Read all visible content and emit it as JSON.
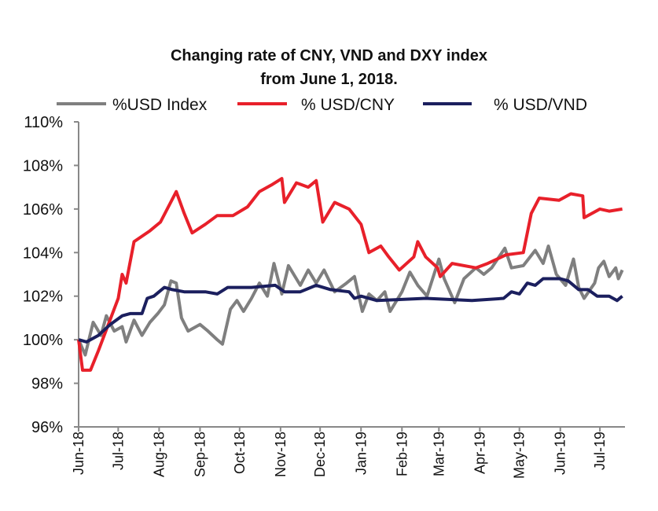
{
  "chart_data": {
    "type": "line",
    "title": "Changing rate of CNY, VND and DXY index",
    "subtitle": "from June 1, 2018.",
    "xlabel": "",
    "ylabel": "",
    "ylim": [
      96,
      110
    ],
    "yticks": [
      "96%",
      "98%",
      "100%",
      "102%",
      "104%",
      "106%",
      "108%",
      "110%"
    ],
    "xticks": [
      "Jun-18",
      "Jul-18",
      "Aug-18",
      "Sep-18",
      "Oct-18",
      "Nov-18",
      "Dec-18",
      "Jan-19",
      "Feb-19",
      "Mar-19",
      "Apr-19",
      "May-19",
      "Jun-19",
      "Jul-19"
    ],
    "xlim": [
      "2018-06-01",
      "2019-07-20"
    ],
    "grid": false,
    "legend_position": "top",
    "series": [
      {
        "name": "%USD Index",
        "color": "#7f7f7f",
        "points": [
          [
            "2018-06-01",
            100
          ],
          [
            "2018-06-06",
            99.3
          ],
          [
            "2018-06-12",
            100.8
          ],
          [
            "2018-06-18",
            100.2
          ],
          [
            "2018-06-22",
            101.1
          ],
          [
            "2018-06-28",
            100.4
          ],
          [
            "2018-07-04",
            100.6
          ],
          [
            "2018-07-07",
            99.9
          ],
          [
            "2018-07-13",
            100.9
          ],
          [
            "2018-07-19",
            100.2
          ],
          [
            "2018-07-25",
            100.8
          ],
          [
            "2018-07-31",
            101.2
          ],
          [
            "2018-08-05",
            101.6
          ],
          [
            "2018-08-10",
            102.7
          ],
          [
            "2018-08-14",
            102.6
          ],
          [
            "2018-08-18",
            101.0
          ],
          [
            "2018-08-23",
            100.4
          ],
          [
            "2018-09-01",
            100.7
          ],
          [
            "2018-09-07",
            100.4
          ],
          [
            "2018-09-14",
            100.0
          ],
          [
            "2018-09-18",
            99.8
          ],
          [
            "2018-09-24",
            101.4
          ],
          [
            "2018-09-29",
            101.8
          ],
          [
            "2018-10-04",
            101.3
          ],
          [
            "2018-10-10",
            101.9
          ],
          [
            "2018-10-16",
            102.6
          ],
          [
            "2018-10-22",
            102.0
          ],
          [
            "2018-10-27",
            103.5
          ],
          [
            "2018-11-02",
            102.1
          ],
          [
            "2018-11-07",
            103.4
          ],
          [
            "2018-11-16",
            102.5
          ],
          [
            "2018-11-22",
            103.2
          ],
          [
            "2018-11-28",
            102.6
          ],
          [
            "2018-12-04",
            103.2
          ],
          [
            "2018-12-12",
            102.2
          ],
          [
            "2018-12-21",
            102.6
          ],
          [
            "2018-12-27",
            102.9
          ],
          [
            "2019-01-02",
            101.3
          ],
          [
            "2019-01-07",
            102.1
          ],
          [
            "2019-01-13",
            101.8
          ],
          [
            "2019-01-19",
            102.2
          ],
          [
            "2019-01-23",
            101.3
          ],
          [
            "2019-02-01",
            102.2
          ],
          [
            "2019-02-07",
            103.1
          ],
          [
            "2019-02-13",
            102.5
          ],
          [
            "2019-02-20",
            102.0
          ],
          [
            "2019-03-01",
            103.7
          ],
          [
            "2019-03-05",
            102.8
          ],
          [
            "2019-03-13",
            101.7
          ],
          [
            "2019-03-20",
            102.8
          ],
          [
            "2019-03-29",
            103.3
          ],
          [
            "2019-04-04",
            103.0
          ],
          [
            "2019-04-10",
            103.3
          ],
          [
            "2019-04-20",
            104.2
          ],
          [
            "2019-04-25",
            103.3
          ],
          [
            "2019-05-04",
            103.4
          ],
          [
            "2019-05-13",
            104.1
          ],
          [
            "2019-05-19",
            103.5
          ],
          [
            "2019-05-23",
            104.3
          ],
          [
            "2019-05-29",
            103.0
          ],
          [
            "2019-06-05",
            102.5
          ],
          [
            "2019-06-11",
            103.7
          ],
          [
            "2019-06-15",
            102.4
          ],
          [
            "2019-06-19",
            101.9
          ],
          [
            "2019-06-27",
            102.6
          ],
          [
            "2019-06-30",
            103.3
          ],
          [
            "2019-07-04",
            103.6
          ],
          [
            "2019-07-08",
            102.9
          ],
          [
            "2019-07-13",
            103.3
          ],
          [
            "2019-07-15",
            102.8
          ],
          [
            "2019-07-18",
            103.2
          ]
        ]
      },
      {
        "name": "% USD/CNY",
        "color": "#e8202a",
        "points": [
          [
            "2018-06-01",
            100
          ],
          [
            "2018-06-04",
            98.6
          ],
          [
            "2018-06-10",
            98.6
          ],
          [
            "2018-06-16",
            99.5
          ],
          [
            "2018-07-01",
            101.9
          ],
          [
            "2018-07-04",
            103.0
          ],
          [
            "2018-07-07",
            102.6
          ],
          [
            "2018-07-13",
            104.5
          ],
          [
            "2018-07-25",
            105.0
          ],
          [
            "2018-08-02",
            105.4
          ],
          [
            "2018-08-14",
            106.8
          ],
          [
            "2018-08-20",
            105.8
          ],
          [
            "2018-08-26",
            104.9
          ],
          [
            "2018-09-05",
            105.3
          ],
          [
            "2018-09-14",
            105.7
          ],
          [
            "2018-09-26",
            105.7
          ],
          [
            "2018-10-07",
            106.1
          ],
          [
            "2018-10-16",
            106.8
          ],
          [
            "2018-10-25",
            107.1
          ],
          [
            "2018-11-02",
            107.4
          ],
          [
            "2018-11-04",
            106.3
          ],
          [
            "2018-11-13",
            107.2
          ],
          [
            "2018-11-22",
            107.0
          ],
          [
            "2018-11-28",
            107.3
          ],
          [
            "2018-12-03",
            105.4
          ],
          [
            "2018-12-12",
            106.3
          ],
          [
            "2018-12-23",
            106.0
          ],
          [
            "2019-01-01",
            105.3
          ],
          [
            "2019-01-07",
            104.0
          ],
          [
            "2019-01-16",
            104.3
          ],
          [
            "2019-01-22",
            103.8
          ],
          [
            "2019-01-30",
            103.2
          ],
          [
            "2019-02-10",
            103.8
          ],
          [
            "2019-02-13",
            104.5
          ],
          [
            "2019-02-19",
            103.8
          ],
          [
            "2019-02-28",
            103.3
          ],
          [
            "2019-03-02",
            102.9
          ],
          [
            "2019-03-11",
            103.5
          ],
          [
            "2019-03-29",
            103.3
          ],
          [
            "2019-04-07",
            103.5
          ],
          [
            "2019-04-21",
            103.9
          ],
          [
            "2019-05-04",
            104.0
          ],
          [
            "2019-05-10",
            105.8
          ],
          [
            "2019-05-16",
            106.5
          ],
          [
            "2019-05-31",
            106.4
          ],
          [
            "2019-06-09",
            106.7
          ],
          [
            "2019-06-18",
            106.6
          ],
          [
            "2019-06-19",
            105.6
          ],
          [
            "2019-07-01",
            106.0
          ],
          [
            "2019-07-08",
            105.9
          ],
          [
            "2019-07-18",
            106.0
          ]
        ]
      },
      {
        "name": "% USD/VND",
        "color": "#1b1f5e",
        "points": [
          [
            "2018-06-01",
            100.0
          ],
          [
            "2018-06-07",
            99.9
          ],
          [
            "2018-06-16",
            100.2
          ],
          [
            "2018-06-25",
            100.7
          ],
          [
            "2018-07-04",
            101.1
          ],
          [
            "2018-07-10",
            101.2
          ],
          [
            "2018-07-19",
            101.2
          ],
          [
            "2018-07-23",
            101.9
          ],
          [
            "2018-07-28",
            102.0
          ],
          [
            "2018-08-05",
            102.4
          ],
          [
            "2018-08-11",
            102.3
          ],
          [
            "2018-08-20",
            102.2
          ],
          [
            "2018-09-05",
            102.2
          ],
          [
            "2018-09-14",
            102.1
          ],
          [
            "2018-09-22",
            102.4
          ],
          [
            "2018-10-10",
            102.4
          ],
          [
            "2018-10-28",
            102.5
          ],
          [
            "2018-11-04",
            102.2
          ],
          [
            "2018-11-16",
            102.2
          ],
          [
            "2018-11-28",
            102.5
          ],
          [
            "2018-12-09",
            102.3
          ],
          [
            "2018-12-23",
            102.2
          ],
          [
            "2018-12-27",
            101.9
          ],
          [
            "2019-01-01",
            102.0
          ],
          [
            "2019-01-13",
            101.8
          ],
          [
            "2019-02-19",
            101.9
          ],
          [
            "2019-03-26",
            101.8
          ],
          [
            "2019-04-19",
            101.9
          ],
          [
            "2019-04-25",
            102.2
          ],
          [
            "2019-05-01",
            102.1
          ],
          [
            "2019-05-07",
            102.6
          ],
          [
            "2019-05-13",
            102.5
          ],
          [
            "2019-05-19",
            102.8
          ],
          [
            "2019-06-01",
            102.8
          ],
          [
            "2019-06-07",
            102.7
          ],
          [
            "2019-06-15",
            102.3
          ],
          [
            "2019-06-22",
            102.3
          ],
          [
            "2019-06-29",
            102.0
          ],
          [
            "2019-07-08",
            102.0
          ],
          [
            "2019-07-14",
            101.8
          ],
          [
            "2019-07-18",
            102.0
          ]
        ]
      }
    ]
  }
}
